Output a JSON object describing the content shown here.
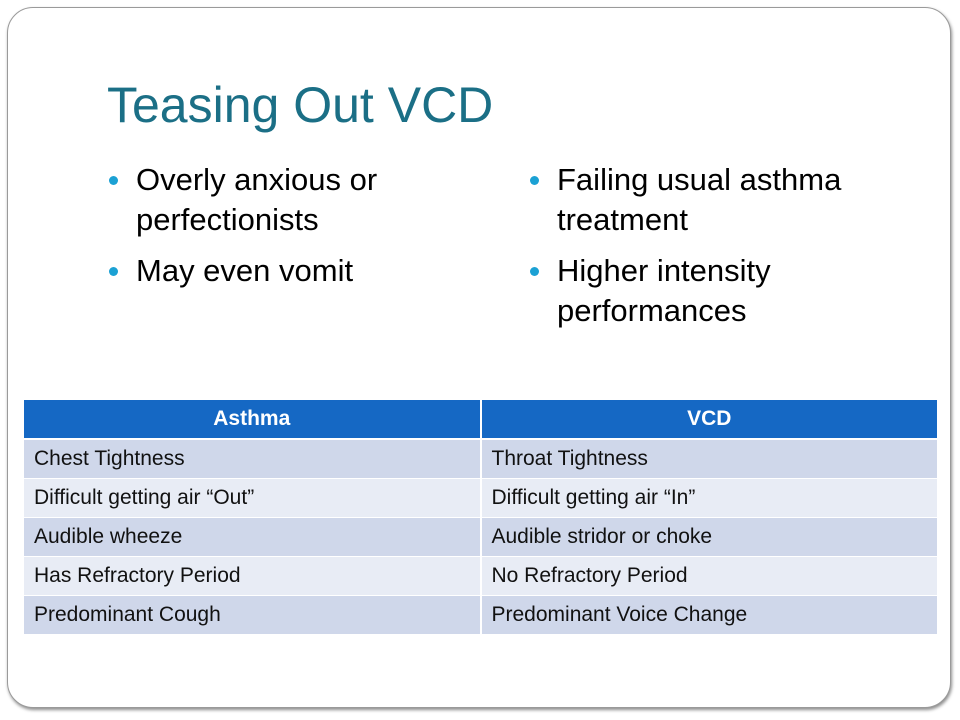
{
  "title": "Teasing Out VCD",
  "bullets_left": [
    "Overly anxious or perfectionists",
    "May even vomit"
  ],
  "bullets_right": [
    "Failing usual asthma treatment",
    "Higher intensity performances"
  ],
  "table": {
    "headers": [
      "Asthma",
      "VCD"
    ],
    "rows": [
      [
        "Chest Tightness",
        "Throat Tightness"
      ],
      [
        "Difficult getting air “Out”",
        "Difficult getting air “In”"
      ],
      [
        "Audible wheeze",
        "Audible stridor or choke"
      ],
      [
        "Has Refractory Period",
        "No Refractory Period"
      ],
      [
        "Predominant Cough",
        "Predominant Voice Change"
      ]
    ]
  },
  "colors": {
    "title": "#1b6f86",
    "bullet": "#1ba1d4",
    "header_bg": "#1568c4",
    "row_bg": "#cfd7ea",
    "row_alt_bg": "#e8ecf5"
  }
}
